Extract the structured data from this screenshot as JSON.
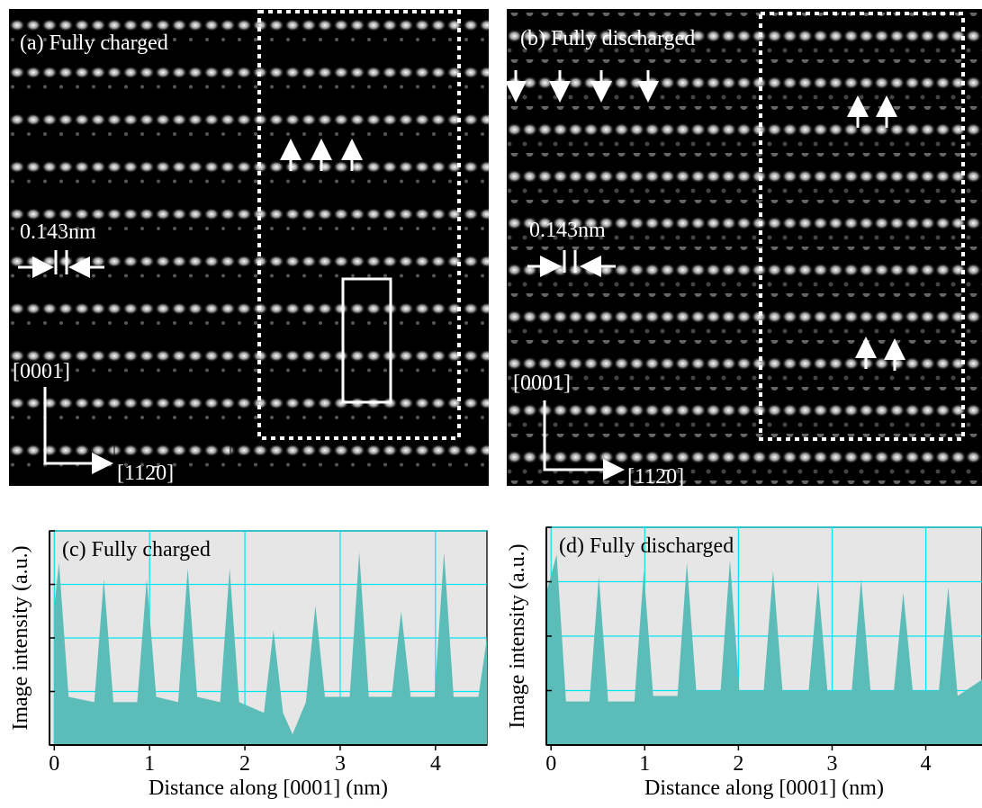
{
  "images": [
    {
      "label": "(a)  Fully charged",
      "spacing": "0.143nm",
      "axis_up": "[0001]",
      "axis_right": "[112̄0]"
    },
    {
      "label": "(b)  Fully discharged",
      "spacing": "0.143nm",
      "axis_up": "[0001]",
      "axis_right": "[112̄0]"
    }
  ],
  "chart_data": [
    {
      "type": "area",
      "title": "(c) Fully charged",
      "xlabel": "Distance along [0001] (nm)",
      "ylabel": "Image intensity (a.u.)",
      "color": "#5bbcb8",
      "grid": true,
      "x": [
        0,
        0.05,
        0.15,
        0.42,
        0.52,
        0.62,
        0.87,
        0.97,
        1.07,
        1.3,
        1.4,
        1.5,
        1.74,
        1.84,
        1.94,
        2.2,
        2.3,
        2.4,
        2.5,
        2.64,
        2.74,
        2.84,
        3.1,
        3.2,
        3.3,
        3.54,
        3.64,
        3.74,
        3.99,
        4.09,
        4.19,
        4.45,
        4.54
      ],
      "values": [
        2.6,
        3.4,
        0.9,
        0.8,
        3.1,
        0.8,
        0.8,
        3.1,
        0.9,
        0.8,
        3.3,
        0.9,
        0.8,
        3.3,
        0.8,
        0.6,
        2.15,
        0.6,
        0.2,
        0.8,
        2.6,
        0.9,
        0.9,
        3.6,
        0.9,
        0.9,
        2.5,
        0.9,
        0.9,
        3.6,
        0.9,
        0.9,
        2.0
      ],
      "xlim": [
        -0.05,
        4.54
      ],
      "xticks": [
        0,
        1,
        2,
        3,
        4
      ],
      "ylim": [
        0,
        4
      ],
      "yticks": [
        0,
        1,
        2,
        3,
        4
      ]
    },
    {
      "type": "area",
      "title": "(d) Fully discharged",
      "xlabel": "Distance along [0001] (nm)",
      "ylabel": "Image intensity (a.u.)",
      "color": "#5bbcb8",
      "grid": true,
      "x": [
        -0.05,
        0.06,
        0.16,
        0.41,
        0.51,
        0.61,
        0.89,
        0.99,
        1.09,
        1.35,
        1.45,
        1.55,
        1.81,
        1.91,
        2.01,
        2.27,
        2.37,
        2.47,
        2.75,
        2.85,
        2.95,
        3.21,
        3.31,
        3.41,
        3.66,
        3.76,
        3.86,
        4.14,
        4.24,
        4.34,
        4.6
      ],
      "values": [
        2.8,
        3.5,
        0.8,
        0.8,
        3.1,
        0.8,
        0.8,
        3.2,
        0.9,
        0.9,
        3.35,
        1.0,
        1.0,
        3.4,
        1.0,
        1.0,
        3.2,
        1.0,
        1.0,
        3.0,
        1.0,
        1.0,
        3.05,
        1.0,
        1.0,
        2.8,
        1.0,
        1.0,
        2.9,
        0.9,
        1.2
      ],
      "xlim": [
        -0.05,
        4.6
      ],
      "xticks": [
        0,
        1,
        2,
        3,
        4
      ],
      "ylim": [
        0,
        4
      ],
      "yticks": [
        0,
        1,
        2,
        3,
        4
      ]
    }
  ]
}
